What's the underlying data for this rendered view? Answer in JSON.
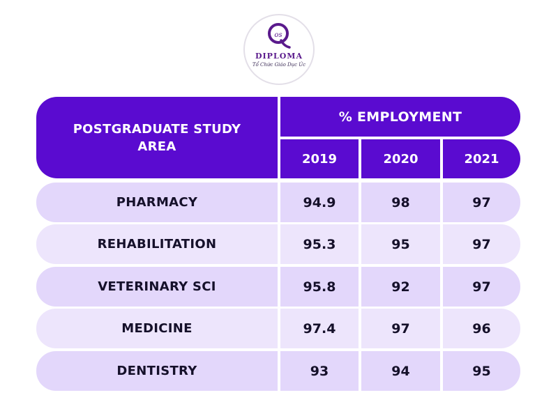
{
  "logo": {
    "wordmark": "DIPLOMA",
    "subtitle": "Tổ Chức Giáo Dục Úc",
    "accent": "#5a1a8c",
    "icon": "q-monogram-logo-icon"
  },
  "colors": {
    "header_bg": "#5a0bd0",
    "header_text": "#ffffff",
    "row_light": "#ede5fc",
    "row_dark": "#e3d7fb",
    "body_text": "#15102a"
  },
  "table": {
    "area_header": "Postgraduate Study Area",
    "group_header": "% Employment",
    "years": [
      "2019",
      "2020",
      "2021"
    ],
    "rows": [
      {
        "area": "Pharmacy",
        "values": [
          "94.9",
          "98",
          "97"
        ]
      },
      {
        "area": "Rehabilitation",
        "values": [
          "95.3",
          "95",
          "97"
        ]
      },
      {
        "area": "Veterinary Sci",
        "values": [
          "95.8",
          "92",
          "97"
        ]
      },
      {
        "area": "Medicine",
        "values": [
          "97.4",
          "97",
          "96"
        ]
      },
      {
        "area": "Dentistry",
        "values": [
          "93",
          "94",
          "95"
        ]
      }
    ]
  }
}
